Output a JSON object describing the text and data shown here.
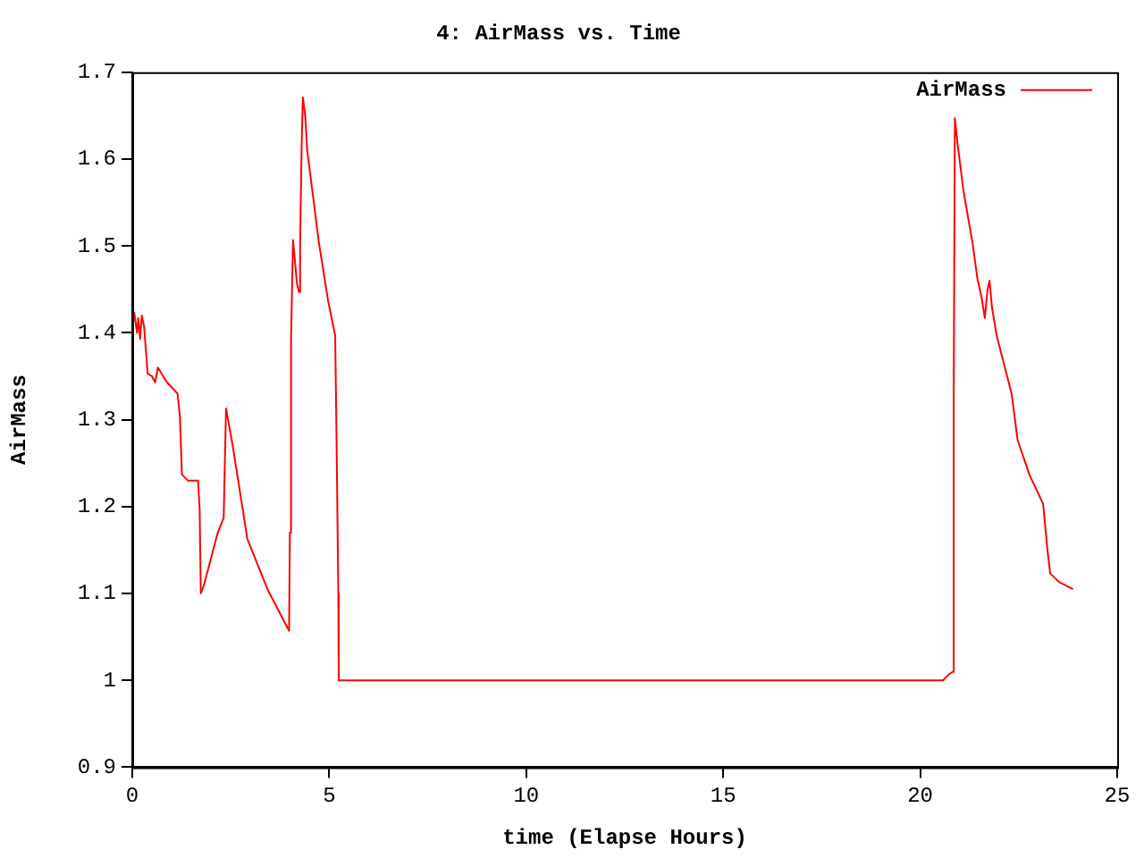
{
  "chart_data": {
    "type": "line",
    "title": "4: AirMass vs. Time",
    "xlabel": "time (Elapse Hours)",
    "ylabel": "AirMass",
    "xlim": [
      0,
      25
    ],
    "xticks": [
      0,
      5,
      10,
      15,
      20,
      25
    ],
    "ylim": [
      0.9,
      1.7
    ],
    "yticks": [
      0.9,
      1,
      1.1,
      1.2,
      1.3,
      1.4,
      1.5,
      1.6,
      1.7
    ],
    "legend": "top right",
    "series": [
      {
        "name": "AirMass",
        "color": "#ff0000",
        "x": [
          0,
          0.05,
          0.12,
          0.15,
          0.2,
          0.24,
          0.3,
          0.35,
          0.39,
          0.5,
          0.58,
          0.65,
          0.88,
          1.15,
          1.21,
          1.26,
          1.41,
          1.67,
          1.71,
          1.74,
          1.82,
          2.17,
          2.32,
          2.38,
          2.55,
          2.92,
          3.45,
          3.98,
          4.0,
          4.03,
          4.08,
          4.18,
          4.23,
          4.26,
          4.3,
          4.33,
          4.39,
          4.44,
          4.74,
          4.97,
          5.15,
          5.18,
          5.23,
          5.24,
          20.58,
          20.73,
          20.83,
          20.85,
          20.88,
          20.95,
          21.1,
          21.33,
          21.45,
          21.56,
          21.64,
          21.71,
          21.76,
          21.82,
          21.94,
          22.32,
          22.47,
          22.77,
          23.12,
          23.23,
          23.3,
          23.53,
          23.88
        ],
        "values": [
          1.403,
          1.423,
          1.4,
          1.417,
          1.393,
          1.42,
          1.407,
          1.377,
          1.353,
          1.35,
          1.343,
          1.36,
          1.343,
          1.33,
          1.303,
          1.237,
          1.23,
          1.23,
          1.197,
          1.1,
          1.11,
          1.17,
          1.187,
          1.313,
          1.27,
          1.163,
          1.103,
          1.057,
          1.17,
          1.393,
          1.507,
          1.457,
          1.447,
          1.503,
          1.617,
          1.671,
          1.65,
          1.61,
          1.503,
          1.437,
          1.397,
          1.297,
          1.1,
          1.0,
          1.0,
          1.007,
          1.01,
          1.327,
          1.647,
          1.617,
          1.563,
          1.503,
          1.463,
          1.44,
          1.417,
          1.45,
          1.46,
          1.43,
          1.397,
          1.33,
          1.277,
          1.237,
          1.203,
          1.15,
          1.123,
          1.113,
          1.105
        ]
      }
    ]
  }
}
